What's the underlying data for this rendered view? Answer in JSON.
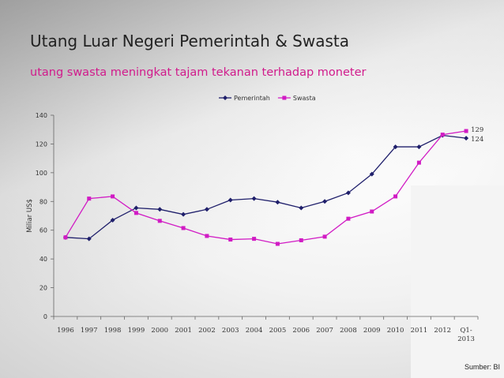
{
  "slide": {
    "title": "Utang Luar Negeri Pemerintah & Swasta",
    "subtitle": "utang swasta meningkat tajam tekanan terhadap moneter",
    "source": "Sumber: BI",
    "subtitle_color": "#d11b8c"
  },
  "chart_data": {
    "type": "line",
    "title": "",
    "xlabel": "",
    "ylabel": "Miliar US$",
    "categories": [
      "1996",
      "1997",
      "1998",
      "1999",
      "2000",
      "2001",
      "2002",
      "2003",
      "2004",
      "2005",
      "2006",
      "2007",
      "2008",
      "2009",
      "2010",
      "2011",
      "2012",
      "Q1-2013"
    ],
    "yticks": [
      0,
      20,
      40,
      60,
      80,
      100,
      120,
      140
    ],
    "ylim": [
      0,
      140
    ],
    "grid": false,
    "legend": "top",
    "series": [
      {
        "name": "Pemerintah",
        "color": "#1f1f6b",
        "marker": "diamond",
        "values": [
          55,
          54,
          67,
          75.5,
          74.5,
          71,
          74.5,
          81,
          82,
          79.5,
          75.5,
          80,
          86,
          99,
          118,
          118,
          126,
          124
        ],
        "end_label": "124"
      },
      {
        "name": "Swasta",
        "color": "#d11bc4",
        "marker": "square",
        "values": [
          55,
          82,
          83.5,
          72,
          66.5,
          61.5,
          56,
          53.5,
          54,
          50.5,
          53,
          55.5,
          68,
          73,
          83.5,
          107,
          126.5,
          129
        ],
        "end_label": "129"
      }
    ]
  }
}
